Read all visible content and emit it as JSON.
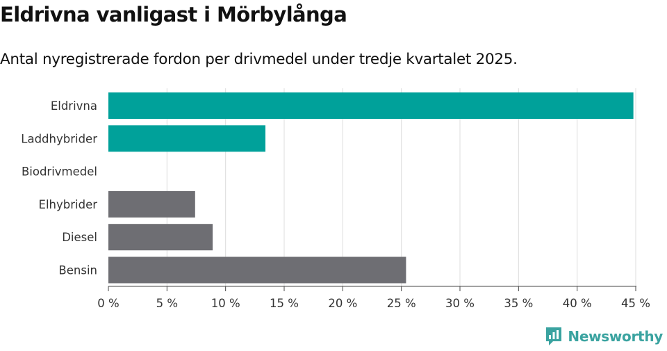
{
  "header": {
    "title": "Eldrivna vanligast i Mörbylånga",
    "subtitle": "Antal nyregistrerade fordon per drivmedel under tredje kvartalet 2025."
  },
  "chart_data": {
    "type": "bar",
    "orientation": "horizontal",
    "categories": [
      "Eldrivna",
      "Laddhybrider",
      "Biodrivmedel",
      "Elhybrider",
      "Diesel",
      "Bensin"
    ],
    "values": [
      44.8,
      13.4,
      0,
      7.4,
      8.9,
      25.4
    ],
    "bar_colors": [
      "#00a19a",
      "#00a19a",
      "#00a19a",
      "#6e6e73",
      "#6e6e73",
      "#6e6e73"
    ],
    "xticks": [
      0,
      5,
      10,
      15,
      20,
      25,
      30,
      35,
      40,
      45
    ],
    "tick_labels": [
      "0 %",
      "5 %",
      "10 %",
      "15 %",
      "20 %",
      "25 %",
      "30 %",
      "35 %",
      "40 %",
      "45 %"
    ],
    "xlim": [
      0,
      45
    ],
    "xlabel": "",
    "ylabel": "",
    "grid": true
  },
  "brand": {
    "name": "Newsworthy",
    "icon": "newsworthy-logo-icon",
    "color": "#3aa3a0"
  }
}
